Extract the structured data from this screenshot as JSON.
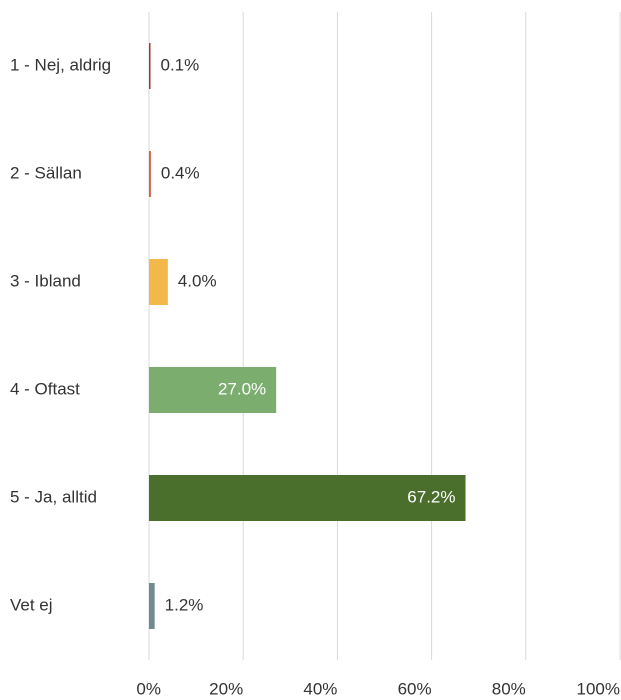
{
  "chart_data": {
    "type": "bar",
    "orientation": "horizontal",
    "categories": [
      "1 - Nej, aldrig",
      "2 - Sällan",
      "3 - Ibland",
      "4 - Oftast",
      "5 - Ja, alltid",
      "Vet ej"
    ],
    "values": [
      0.1,
      0.4,
      4.0,
      27.0,
      67.2,
      1.2
    ],
    "value_labels": [
      "0.1%",
      "0.4%",
      "4.0%",
      "27.0%",
      "67.2%",
      "1.2%"
    ],
    "colors": [
      "#a8322d",
      "#d4613e",
      "#f2b84b",
      "#7aad6e",
      "#4a6e2b",
      "#6f8a91"
    ],
    "xlim": [
      0,
      100
    ],
    "xticks": [
      {
        "value": 0,
        "label": "0%"
      },
      {
        "value": 20,
        "label": "20%"
      },
      {
        "value": 40,
        "label": "40%"
      },
      {
        "value": 60,
        "label": "60%"
      },
      {
        "value": 80,
        "label": "80%"
      },
      {
        "value": 100,
        "label": "100%"
      }
    ],
    "grid": true
  }
}
